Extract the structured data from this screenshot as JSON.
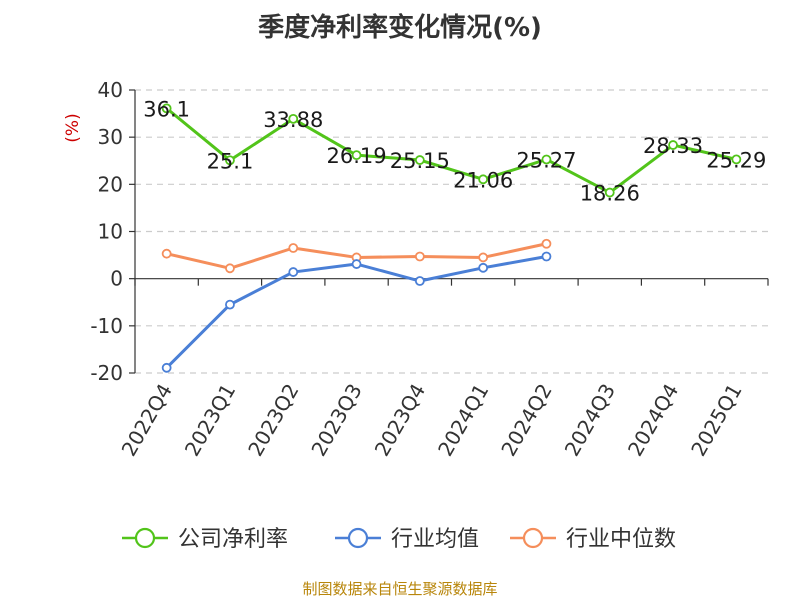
{
  "chart_data": {
    "type": "line",
    "title": "季度净利率变化情况(%)",
    "ylabel": "(%)",
    "ylim": [
      -20,
      40
    ],
    "yticks": [
      -20,
      -10,
      0,
      10,
      20,
      30,
      40
    ],
    "ytick_labels": [
      "-20",
      "-10",
      "0",
      "10",
      "20",
      "30",
      "40"
    ],
    "categories": [
      "2022Q4",
      "2023Q1",
      "2023Q2",
      "2023Q3",
      "2023Q4",
      "2024Q1",
      "2024Q2",
      "2024Q3",
      "2024Q4",
      "2025Q1"
    ],
    "grid": true,
    "legend_position": "bottom",
    "series": [
      {
        "name": "公司净利率",
        "color": "#52c41a",
        "values": [
          36.1,
          25.1,
          33.88,
          26.19,
          25.15,
          21.06,
          25.27,
          18.26,
          28.33,
          25.29
        ],
        "labels": [
          "36.1",
          "25.1",
          "33.88",
          "26.19",
          "25.15",
          "21.06",
          "25.27",
          "18.26",
          "28.33",
          "25.29"
        ]
      },
      {
        "name": "行业均值",
        "color": "#4a7fd6",
        "values": [
          -18.9,
          -5.5,
          1.4,
          3.1,
          -0.5,
          2.3,
          4.7,
          null,
          null,
          null
        ]
      },
      {
        "name": "行业中位数",
        "color": "#f58e5b",
        "values": [
          5.3,
          2.2,
          6.5,
          4.5,
          4.7,
          4.5,
          7.4,
          null,
          null,
          null
        ]
      }
    ]
  },
  "footer": {
    "source": "制图数据来自恒生聚源数据库"
  }
}
